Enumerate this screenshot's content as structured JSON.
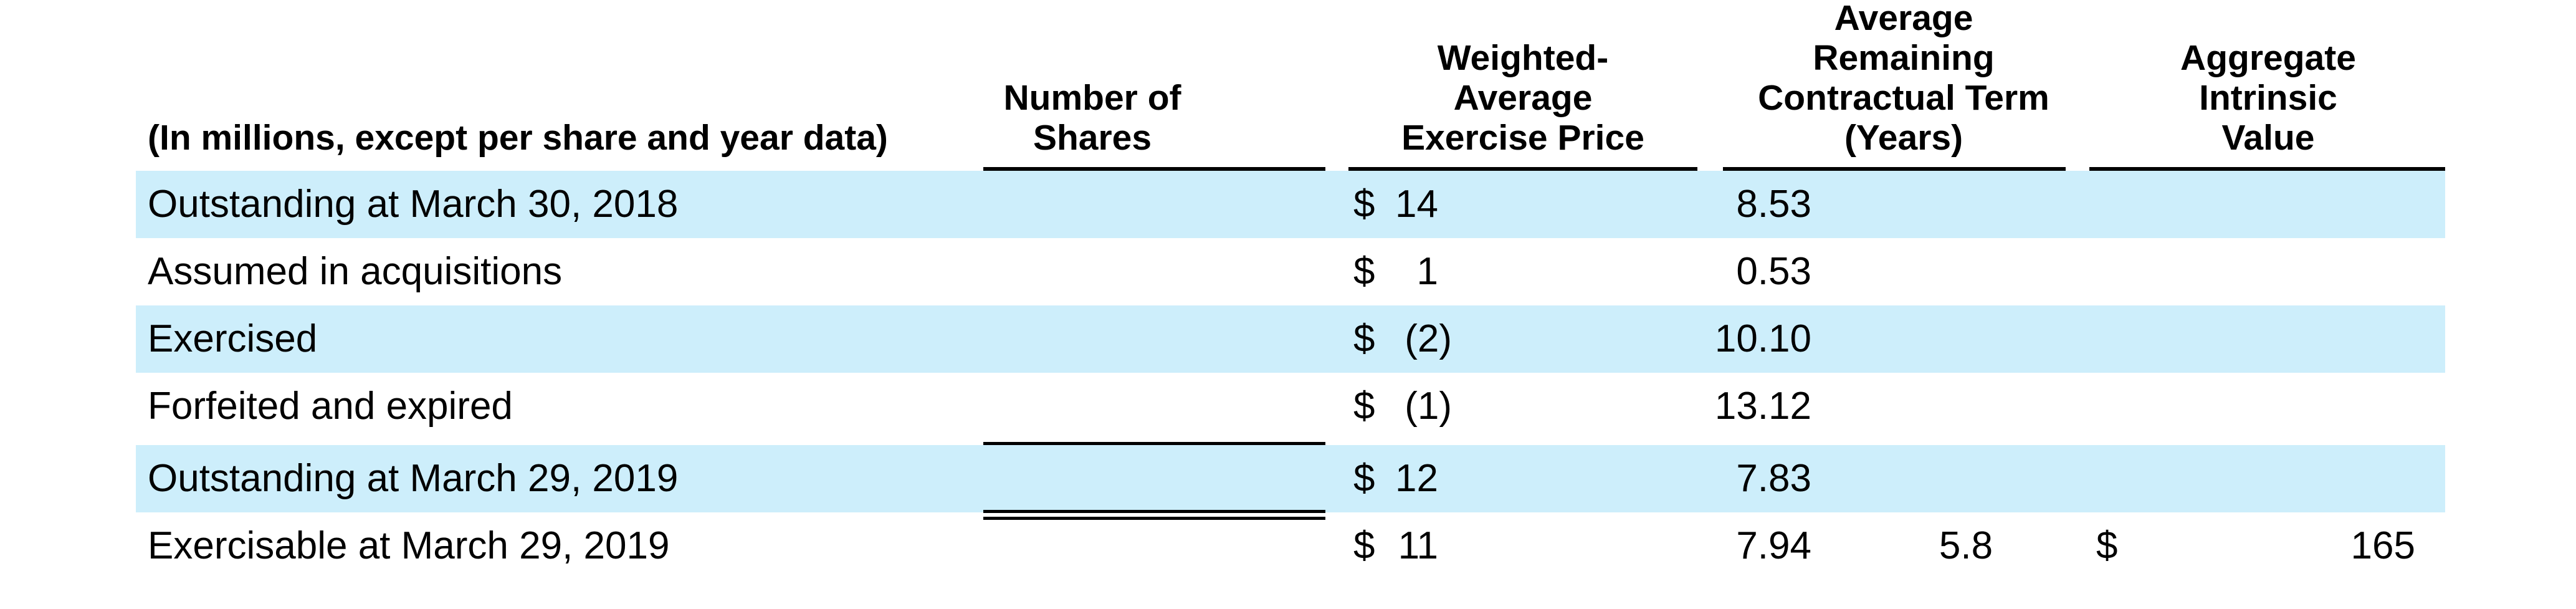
{
  "header": {
    "label_col": "(In millions, except per share and year data)",
    "shares": "Number of\nShares",
    "price": "Weighted-\nAverage\nExercise Price",
    "term": "Average\nRemaining\nContractual Term\n(Years)",
    "value": "Aggregate\nIntrinsic\nValue"
  },
  "rows": [
    {
      "label": "Outstanding at March 30, 2018",
      "shares": "14",
      "currency": "$",
      "price": "8.53"
    },
    {
      "label": "Assumed in acquisitions",
      "shares": "1",
      "currency": "$",
      "price": "0.53"
    },
    {
      "label": "Exercised",
      "shares": "(2)",
      "currency": "$",
      "price": "10.10"
    },
    {
      "label": "Forfeited and expired",
      "shares": "(1)",
      "currency": "$",
      "price": "13.12"
    },
    {
      "label": "Outstanding at March 29, 2019",
      "shares": "12",
      "currency": "$",
      "price": "7.83"
    },
    {
      "label": "Exercisable at March 29, 2019",
      "shares": "11",
      "currency": "$",
      "price": "7.94",
      "term": "5.8",
      "value_currency": "$",
      "value": "165"
    }
  ],
  "colors": {
    "row_shade": "#cdeefb"
  }
}
